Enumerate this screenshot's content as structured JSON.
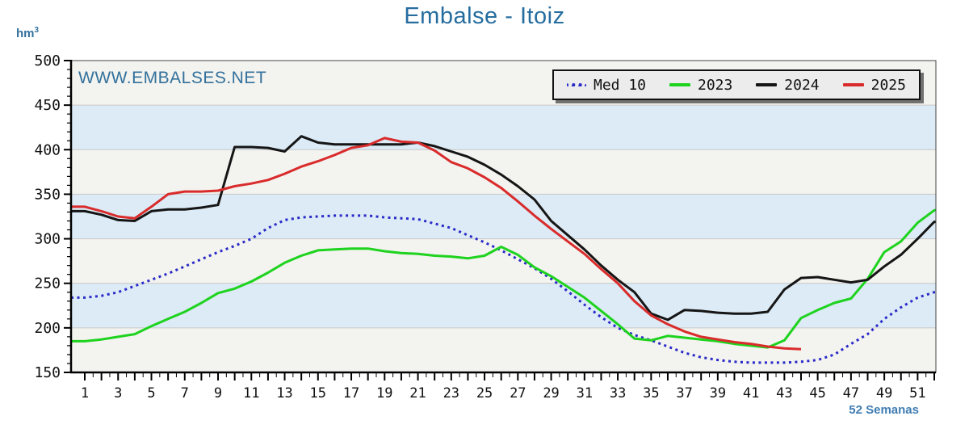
{
  "title": "Embalse - Itoiz",
  "watermark": "WWW.EMBALSES.NET",
  "y_axis": {
    "unit_base": "hm",
    "unit_exp": "3",
    "min": 150,
    "max": 500,
    "major_step": 50,
    "minor_step": 10,
    "tick_labels": [
      "500",
      "450",
      "400",
      "350",
      "300",
      "250",
      "200",
      "150"
    ]
  },
  "x_axis": {
    "label": "52 Semanas",
    "weeks": 52,
    "tick_labels": [
      "1",
      "3",
      "5",
      "7",
      "9",
      "11",
      "13",
      "15",
      "17",
      "19",
      "21",
      "23",
      "25",
      "27",
      "29",
      "31",
      "33",
      "35",
      "37",
      "39",
      "41",
      "43",
      "45",
      "47",
      "49",
      "51"
    ]
  },
  "legend": [
    {
      "label": "Med 10",
      "color": "#2a2ac8",
      "style": "dotted"
    },
    {
      "label": "2023",
      "color": "#1ed31e",
      "style": "solid"
    },
    {
      "label": "2024",
      "color": "#151515",
      "style": "solid"
    },
    {
      "label": "2025",
      "color": "#d92b2b",
      "style": "solid"
    }
  ],
  "colors": {
    "title_text": "#266d9f",
    "blue_text": "#33719c",
    "x_label_text": "#3f7db3",
    "band_gray": "#f3f3ef",
    "band_blue": "#dcebf6",
    "gridline": "#c8c8c8",
    "frame": "#444444",
    "axis": "#000000",
    "tick_label": "#111111"
  },
  "chart_data": {
    "type": "line",
    "title": "Embalse - Itoiz",
    "xlabel": "52 Semanas",
    "ylabel": "hm3",
    "ylim": [
      150,
      500
    ],
    "xlim": [
      1,
      52
    ],
    "grid": true,
    "legend_position": "top-right",
    "x": [
      1,
      2,
      3,
      4,
      5,
      6,
      7,
      8,
      9,
      10,
      11,
      12,
      13,
      14,
      15,
      16,
      17,
      18,
      19,
      20,
      21,
      22,
      23,
      24,
      25,
      26,
      27,
      28,
      29,
      30,
      31,
      32,
      33,
      34,
      35,
      36,
      37,
      38,
      39,
      40,
      41,
      42,
      43,
      44,
      45,
      46,
      47,
      48,
      49,
      50,
      51,
      52
    ],
    "series": [
      {
        "name": "Med 10",
        "color": "#2a2ac8",
        "style": "dotted",
        "values": [
          234,
          236,
          240,
          247,
          254,
          261,
          269,
          277,
          285,
          292,
          300,
          312,
          321,
          324,
          325,
          326,
          326,
          326,
          324,
          323,
          322,
          317,
          312,
          304,
          296,
          287,
          277,
          267,
          255,
          241,
          226,
          212,
          200,
          192,
          186,
          179,
          172,
          167,
          164,
          162,
          161,
          161,
          161,
          162,
          164,
          170,
          182,
          193,
          210,
          223,
          234,
          240
        ]
      },
      {
        "name": "2023",
        "color": "#1ed31e",
        "style": "solid",
        "values": [
          185,
          187,
          190,
          193,
          202,
          210,
          218,
          228,
          239,
          244,
          252,
          262,
          273,
          281,
          287,
          288,
          289,
          289,
          286,
          284,
          283,
          281,
          280,
          278,
          281,
          291,
          282,
          268,
          258,
          246,
          234,
          219,
          204,
          188,
          186,
          191,
          189,
          187,
          185,
          182,
          180,
          178,
          186,
          211,
          220,
          228,
          233,
          255,
          285,
          297,
          318,
          332
        ]
      },
      {
        "name": "2024",
        "color": "#151515",
        "style": "solid",
        "values": [
          331,
          327,
          321,
          320,
          331,
          333,
          333,
          335,
          338,
          403,
          403,
          402,
          398,
          415,
          408,
          406,
          406,
          406,
          406,
          406,
          408,
          404,
          398,
          392,
          383,
          372,
          359,
          344,
          320,
          304,
          288,
          270,
          254,
          240,
          216,
          209,
          220,
          219,
          217,
          216,
          216,
          218,
          243,
          256,
          257,
          254,
          251,
          254,
          269,
          282,
          300,
          319
        ]
      },
      {
        "name": "2025",
        "color": "#d92b2b",
        "style": "solid",
        "values": [
          336,
          331,
          325,
          323,
          336,
          350,
          353,
          353,
          354,
          359,
          362,
          366,
          373,
          381,
          387,
          394,
          402,
          405,
          413,
          409,
          408,
          399,
          386,
          379,
          369,
          357,
          342,
          326,
          311,
          297,
          283,
          266,
          250,
          230,
          214,
          204,
          196,
          190,
          187,
          184,
          182,
          179,
          177,
          176
        ]
      }
    ]
  }
}
